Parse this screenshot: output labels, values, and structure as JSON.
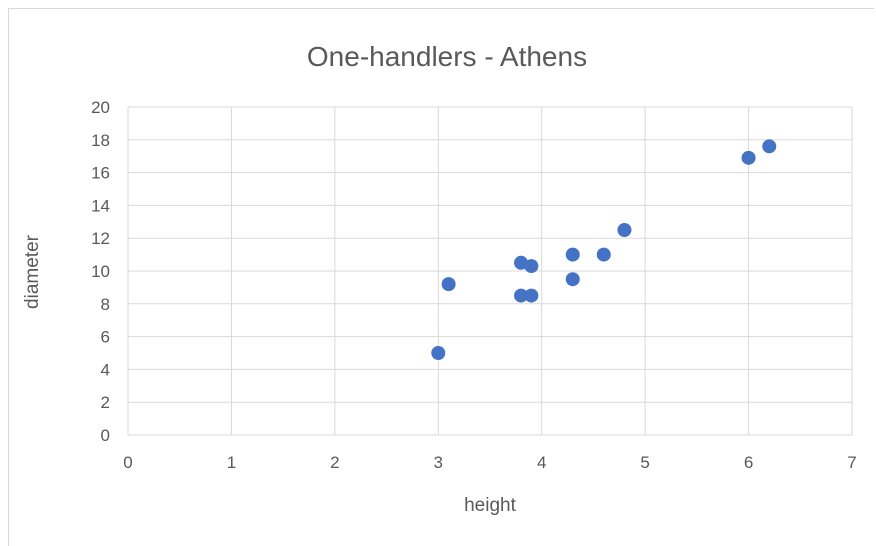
{
  "chart_data": {
    "type": "scatter",
    "title": "One-handlers - Athens",
    "xlabel": "height",
    "ylabel": "diameter",
    "xlim": [
      0,
      7
    ],
    "ylim": [
      0,
      20
    ],
    "x_ticks": [
      "0",
      "1",
      "2",
      "3",
      "4",
      "5",
      "6",
      "7"
    ],
    "y_ticks": [
      "0",
      "2",
      "4",
      "6",
      "8",
      "10",
      "12",
      "14",
      "16",
      "18",
      "20"
    ],
    "grid": true,
    "legend": "none",
    "marker_color": "#4472c4",
    "points": [
      {
        "x": 3.0,
        "y": 5.0
      },
      {
        "x": 3.1,
        "y": 9.2
      },
      {
        "x": 3.8,
        "y": 8.5
      },
      {
        "x": 3.9,
        "y": 8.5
      },
      {
        "x": 3.8,
        "y": 10.5
      },
      {
        "x": 3.9,
        "y": 10.3
      },
      {
        "x": 4.3,
        "y": 9.5
      },
      {
        "x": 4.3,
        "y": 11.0
      },
      {
        "x": 4.6,
        "y": 11.0
      },
      {
        "x": 4.8,
        "y": 12.5
      },
      {
        "x": 6.0,
        "y": 16.9
      },
      {
        "x": 6.2,
        "y": 17.6
      }
    ]
  }
}
